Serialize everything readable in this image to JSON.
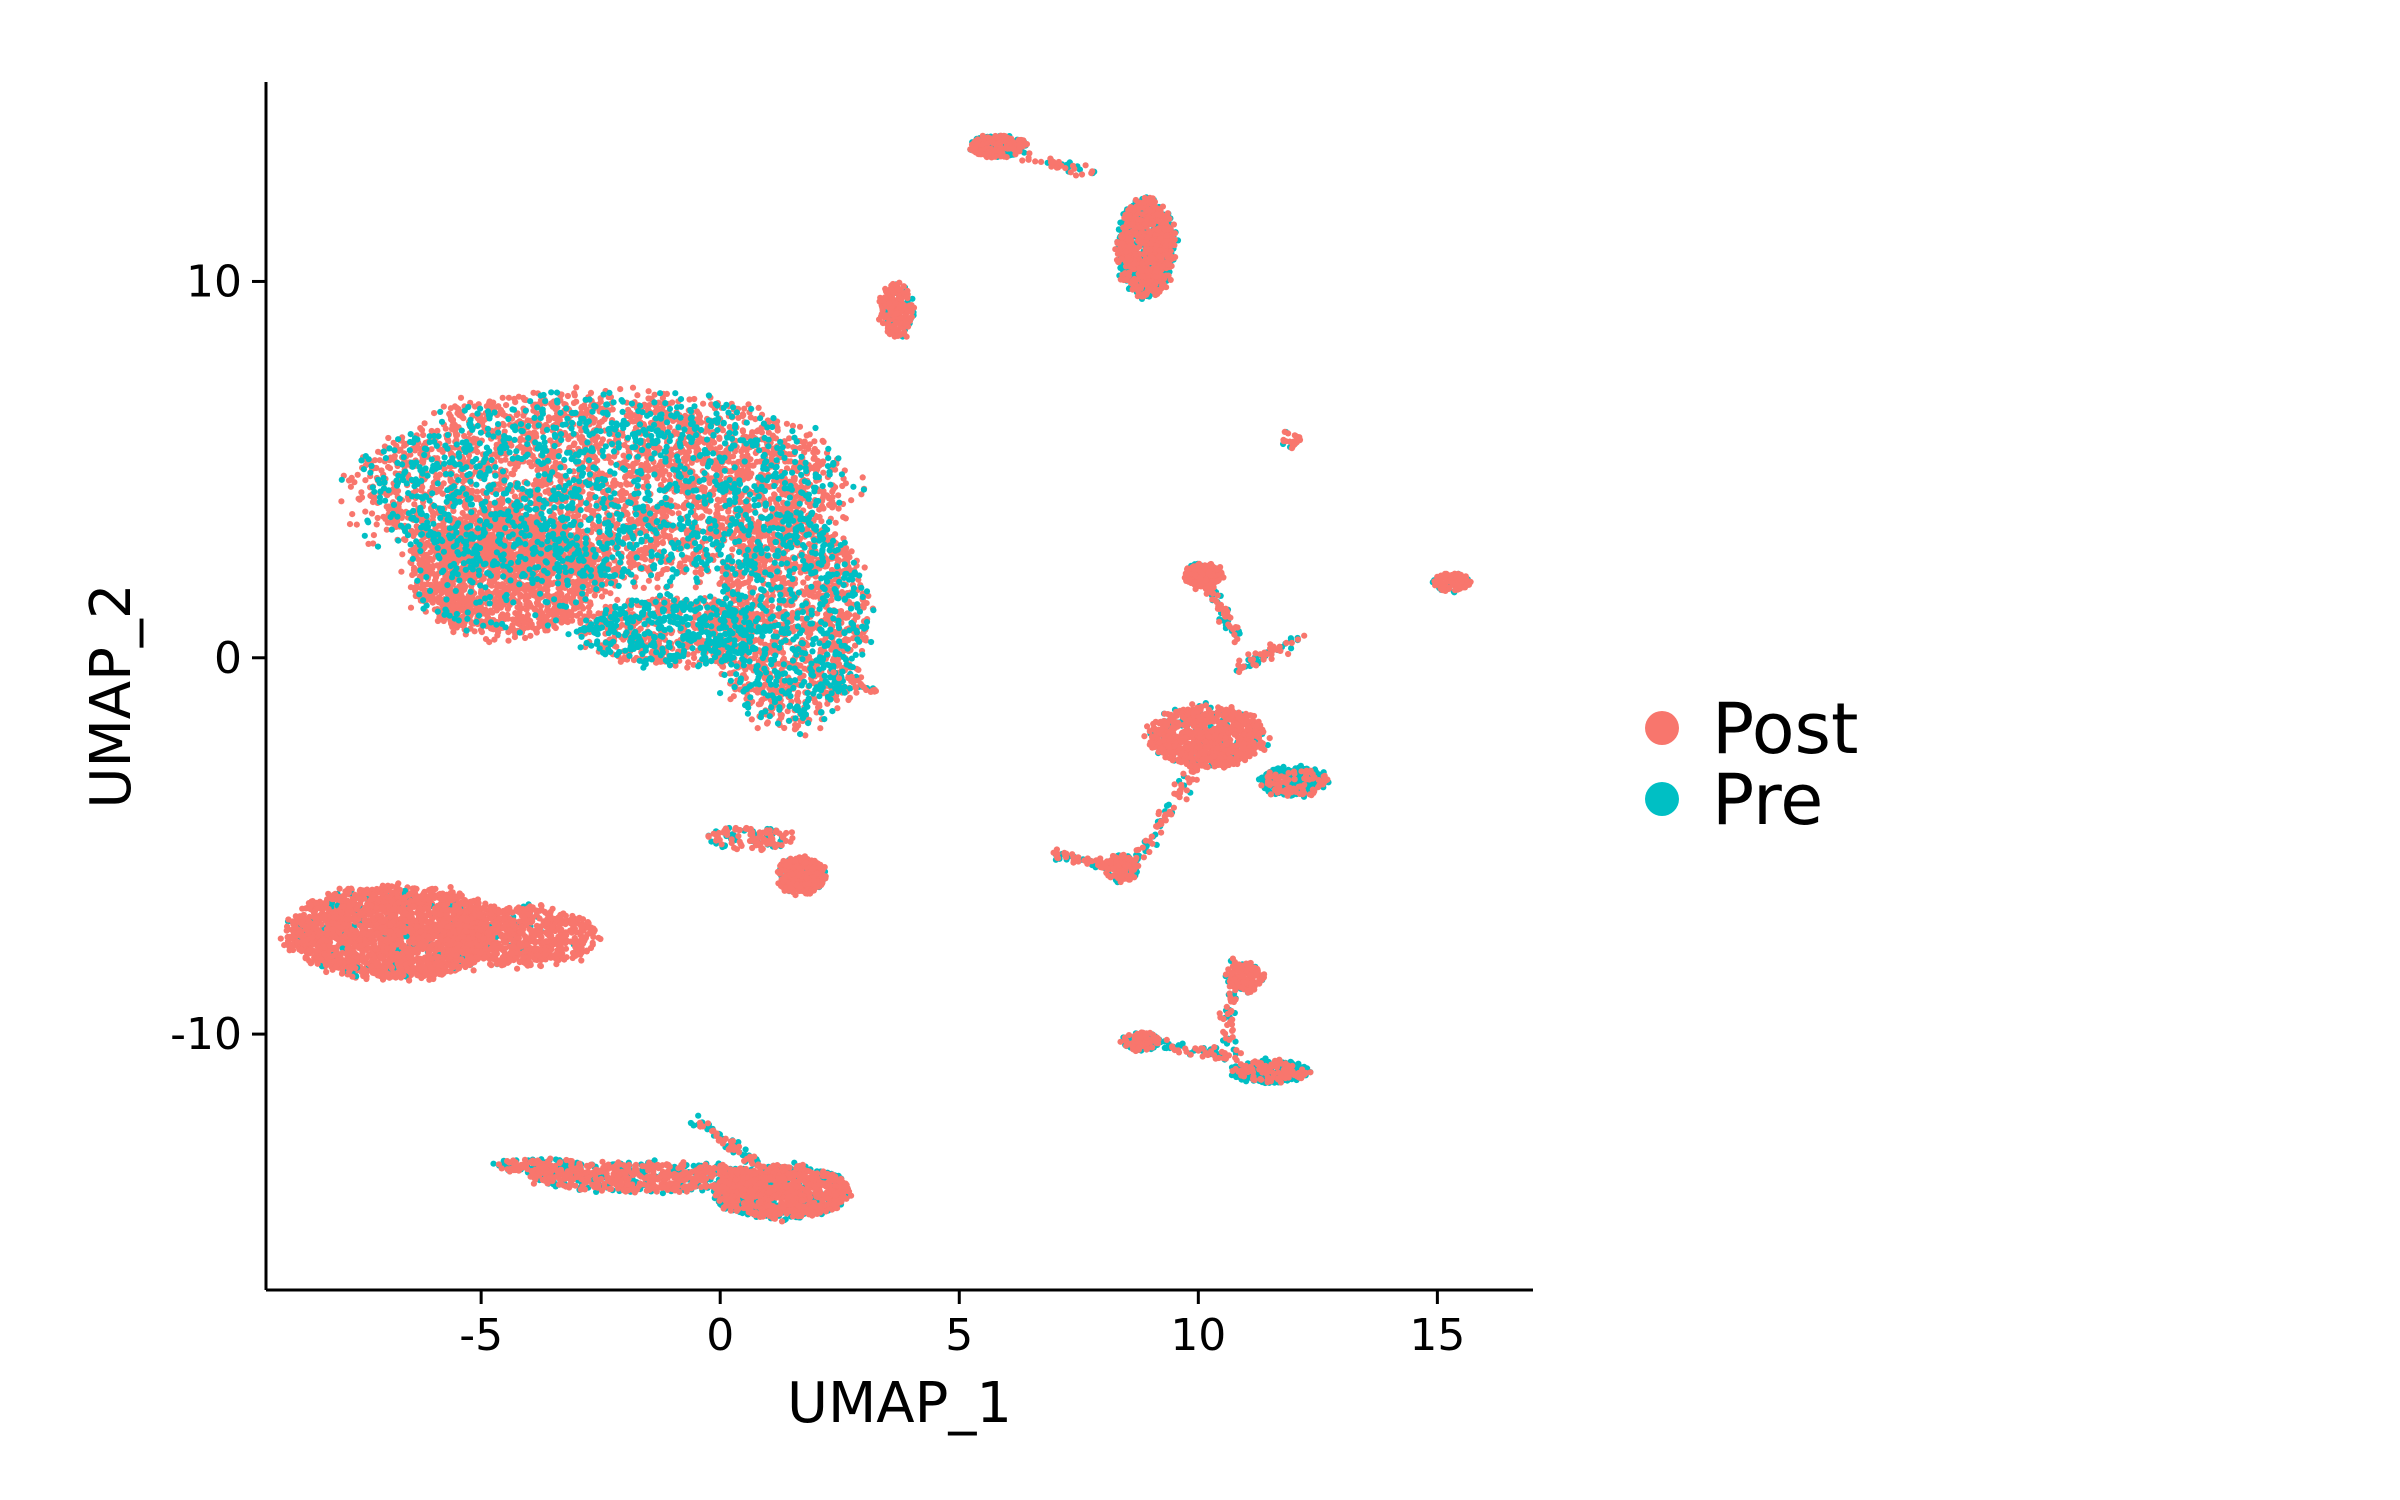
{
  "chart_data": {
    "type": "scatter",
    "xlabel": "UMAP_1",
    "ylabel": "UMAP_2",
    "xlim": [
      -9.5,
      17
    ],
    "ylim": [
      -16.8,
      15.3
    ],
    "x_ticks": [
      -5,
      0,
      5,
      10,
      15
    ],
    "y_ticks": [
      -10,
      0,
      10
    ],
    "x_tick_labels": [
      "-5",
      "0",
      "5",
      "10",
      "15"
    ],
    "y_tick_labels": [
      "-10",
      "0",
      "10"
    ],
    "grid": false,
    "legend_position": "right",
    "series": [
      {
        "name": "Post",
        "color": "#F8766D"
      },
      {
        "name": "Pre",
        "color": "#00BFC4"
      }
    ],
    "clusters": [
      {
        "cx": -2.5,
        "cy": 4.5,
        "rx": 5.0,
        "ry": 2.5,
        "n": 4200,
        "pre": 0.3
      },
      {
        "cx": -4.5,
        "cy": 2.2,
        "rx": 2.0,
        "ry": 1.6,
        "n": 1600,
        "pre": 0.08
      },
      {
        "cx": 1.5,
        "cy": 1.0,
        "rx": 1.6,
        "ry": 2.8,
        "n": 1600,
        "pre": 0.35
      },
      {
        "cx": -1.0,
        "cy": 0.7,
        "rx": 2.0,
        "ry": 0.9,
        "n": 800,
        "pre": 0.45
      },
      {
        "cx": -6.8,
        "cy": -7.3,
        "rx": 2.2,
        "ry": 1.2,
        "n": 2400,
        "pre": 0.03
      },
      {
        "cx": -4.2,
        "cy": -7.4,
        "rx": 1.6,
        "ry": 0.8,
        "n": 700,
        "pre": 0.05
      },
      {
        "cx": 1.3,
        "cy": -14.2,
        "rx": 1.4,
        "ry": 0.7,
        "n": 1200,
        "pre": 0.4
      },
      {
        "cx": -1.5,
        "cy": -13.8,
        "rx": 2.5,
        "ry": 0.4,
        "n": 700,
        "pre": 0.35
      },
      {
        "cx": -3.8,
        "cy": -13.5,
        "rx": 1.0,
        "ry": 0.2,
        "n": 150,
        "pre": 0.4
      },
      {
        "cx": 1.7,
        "cy": -5.8,
        "rx": 0.5,
        "ry": 0.5,
        "n": 350,
        "pre": 0.2
      },
      {
        "cx": 0.6,
        "cy": -4.8,
        "rx": 0.9,
        "ry": 0.3,
        "n": 120,
        "pre": 0.3
      },
      {
        "cx": 3.7,
        "cy": 9.2,
        "rx": 0.35,
        "ry": 0.7,
        "n": 220,
        "pre": 0.2
      },
      {
        "cx": 5.8,
        "cy": 13.6,
        "rx": 0.6,
        "ry": 0.3,
        "n": 250,
        "pre": 0.4
      },
      {
        "cx": 8.9,
        "cy": 10.9,
        "rx": 0.6,
        "ry": 1.3,
        "n": 1100,
        "pre": 0.5
      },
      {
        "cx": 10.2,
        "cy": -2.1,
        "rx": 1.2,
        "ry": 0.8,
        "n": 900,
        "pre": 0.2
      },
      {
        "cx": 12.0,
        "cy": -3.3,
        "rx": 0.7,
        "ry": 0.4,
        "n": 300,
        "pre": 0.7
      },
      {
        "cx": 10.1,
        "cy": 2.2,
        "rx": 0.4,
        "ry": 0.3,
        "n": 220,
        "pre": 0.1
      },
      {
        "cx": 8.4,
        "cy": -5.6,
        "rx": 0.35,
        "ry": 0.35,
        "n": 150,
        "pre": 0.4
      },
      {
        "cx": 11.0,
        "cy": -8.5,
        "rx": 0.35,
        "ry": 0.4,
        "n": 160,
        "pre": 0.1
      },
      {
        "cx": 8.8,
        "cy": -10.2,
        "rx": 0.4,
        "ry": 0.25,
        "n": 150,
        "pre": 0.6
      },
      {
        "cx": 11.5,
        "cy": -11.0,
        "rx": 0.8,
        "ry": 0.3,
        "n": 330,
        "pre": 0.7
      },
      {
        "cx": 15.3,
        "cy": 2.0,
        "rx": 0.4,
        "ry": 0.25,
        "n": 130,
        "pre": 0.2
      },
      {
        "cx": 11.9,
        "cy": 5.8,
        "rx": 0.25,
        "ry": 0.25,
        "n": 25,
        "pre": 0.2
      }
    ],
    "streaks": [
      {
        "x1": 10.0,
        "y1": 2.5,
        "x2": 10.8,
        "y2": 0.5,
        "n": 80,
        "pre": 0.4
      },
      {
        "x1": 10.8,
        "y1": -0.3,
        "x2": 12.1,
        "y2": 0.5,
        "n": 60,
        "pre": 0.4
      },
      {
        "x1": 10.0,
        "y1": -2.8,
        "x2": 8.6,
        "y2": -5.6,
        "n": 90,
        "pre": 0.4
      },
      {
        "x1": 7.0,
        "y1": -5.2,
        "x2": 8.4,
        "y2": -5.6,
        "n": 60,
        "pre": 0.3
      },
      {
        "x1": 10.7,
        "y1": -8.0,
        "x2": 10.6,
        "y2": -10.5,
        "n": 60,
        "pre": 0.4
      },
      {
        "x1": 9.3,
        "y1": -10.3,
        "x2": 10.8,
        "y2": -10.6,
        "n": 60,
        "pre": 0.5
      },
      {
        "x1": 6.3,
        "y1": 13.3,
        "x2": 7.8,
        "y2": 12.9,
        "n": 40,
        "pre": 0.4
      },
      {
        "x1": -0.5,
        "y1": -12.3,
        "x2": 0.8,
        "y2": -13.5,
        "n": 70,
        "pre": 0.4
      },
      {
        "x1": 2.4,
        "y1": -0.5,
        "x2": 3.3,
        "y2": -0.9,
        "n": 30,
        "pre": 0.4
      }
    ]
  }
}
